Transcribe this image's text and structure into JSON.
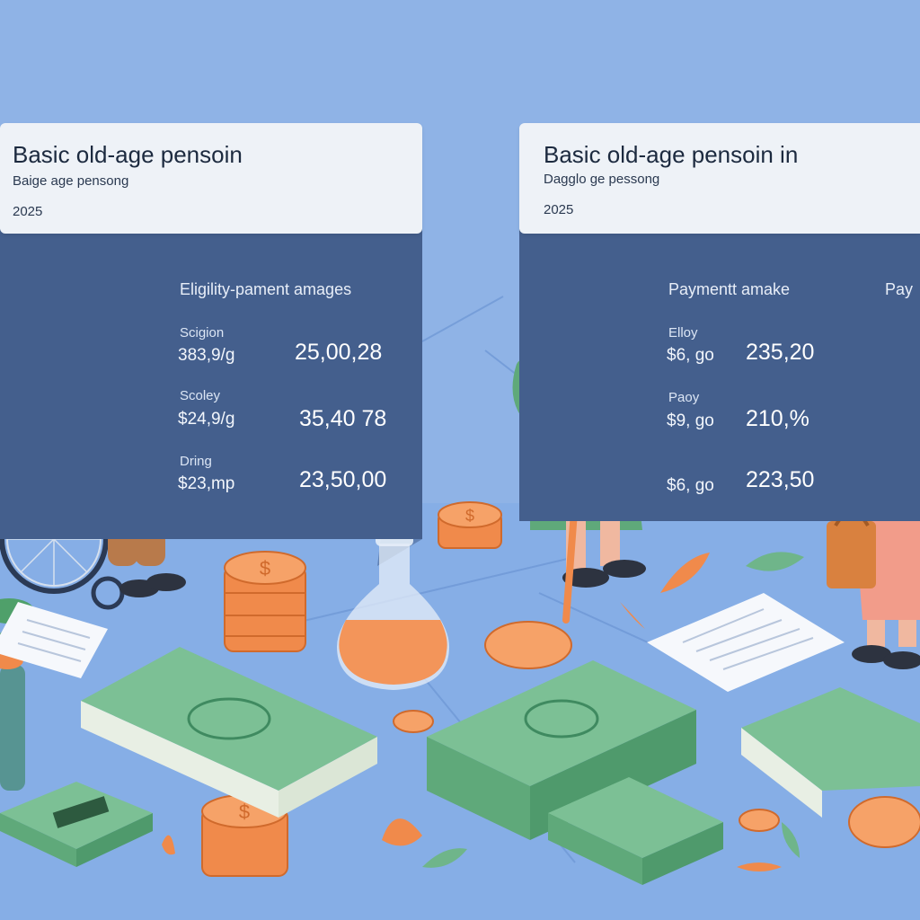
{
  "left_card": {
    "title": "Basic old-age pensoin",
    "subtitle": "Baige  age pensong",
    "year": "2025",
    "panel_heading": "Eligility-pament amages",
    "rows": [
      {
        "label": "Scigion",
        "sub": "383,9/g",
        "value": "25,00,28"
      },
      {
        "label": "Scoley",
        "sub": "$24,9/g",
        "value": "35,40 78"
      },
      {
        "label": "Dring",
        "sub": "$23,mp",
        "value": "23,50,00"
      }
    ]
  },
  "right_card": {
    "title": "Basic old-age pensoin in",
    "subtitle": "Dagglo ge pessong",
    "year": "2025",
    "panel_heading": "Paymentt amake",
    "panel_heading_2": "Pay",
    "rows": [
      {
        "label": "Elloy",
        "sub": "$6, go",
        "value": "235,20"
      },
      {
        "label": "Paoy",
        "sub": "$9, go",
        "value": "210,%"
      },
      {
        "label": "",
        "sub": "$6, go",
        "value": "223,50"
      }
    ]
  },
  "colors": {
    "background": "#8fb3e6",
    "panel": "#445f8d",
    "card": "#eef2f7",
    "accent_coin": "#f08a4b",
    "cash": "#6fb58a"
  },
  "icons": [
    "elderly-man-wheelchair-icon",
    "elderly-woman-cane-icon",
    "elderly-woman-handbag-icon",
    "coin-stack-icon",
    "banknote-stack-icon",
    "flask-icon",
    "document-icon",
    "leaf-icon",
    "plant-vase-icon"
  ]
}
